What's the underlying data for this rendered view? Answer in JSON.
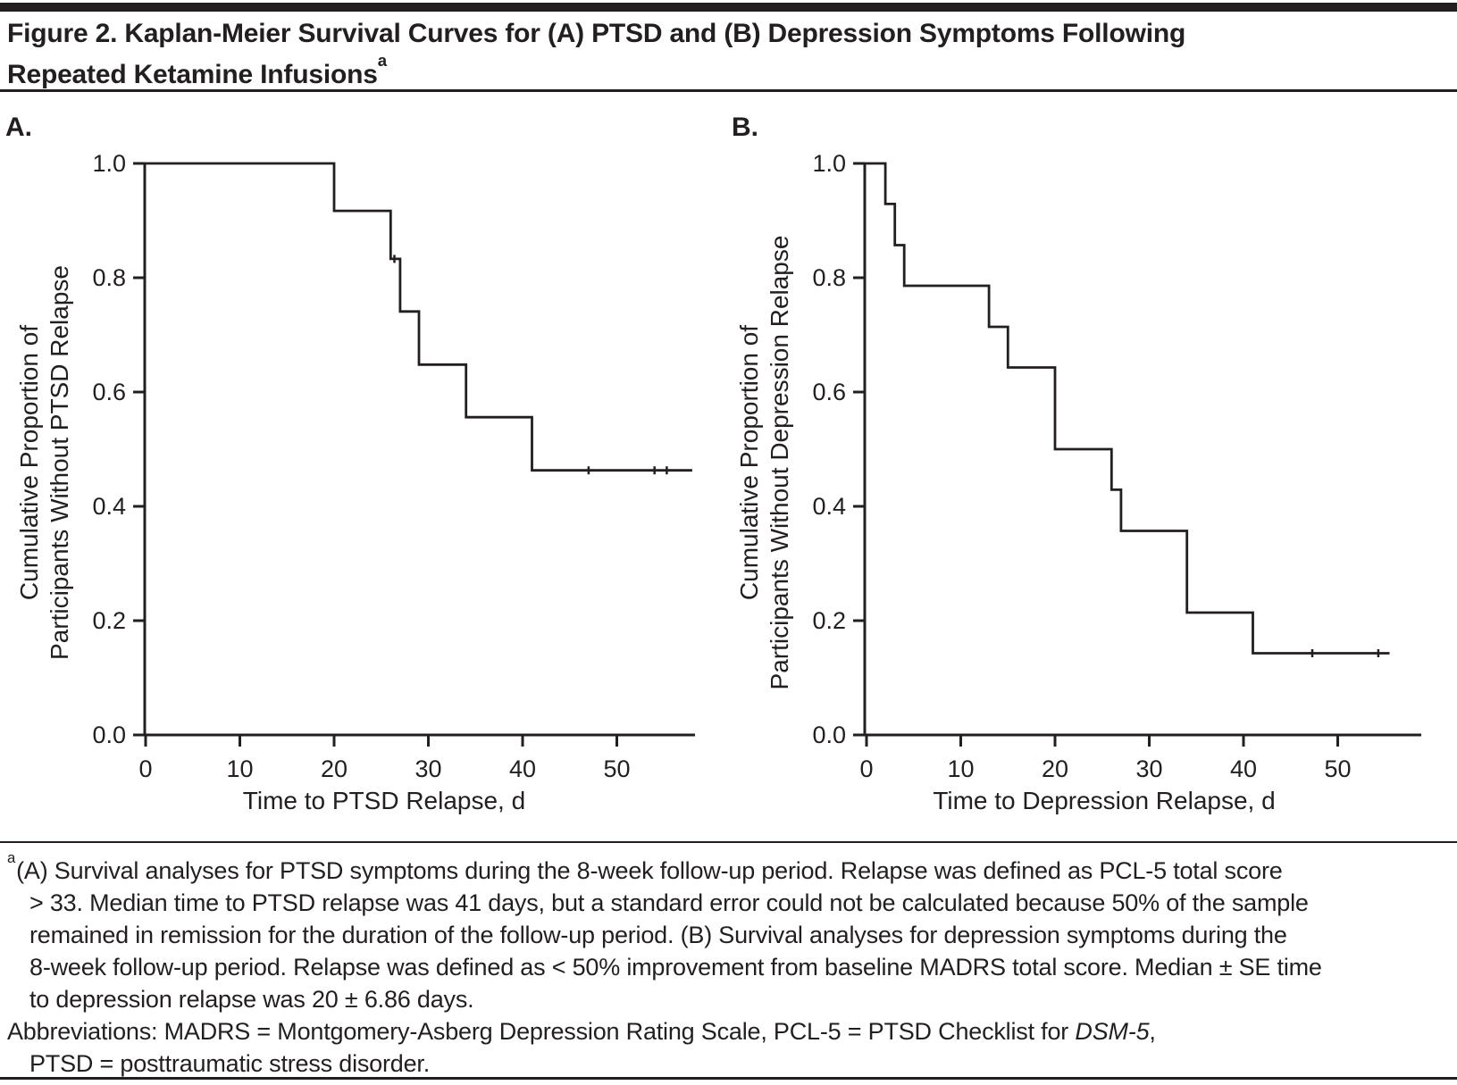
{
  "title": {
    "line1": "Figure 2. Kaplan-Meier Survival Curves for (A) PTSD and (B) Depression Symptoms Following",
    "line2": "Repeated Ketamine Infusions",
    "line2_superscript": "a"
  },
  "colors": {
    "ink": "#231f20",
    "background": "#ffffff"
  },
  "chart_data": [
    {
      "type": "line",
      "subtype": "kaplan-meier-step",
      "panel_label": "A.",
      "xlabel": "Time to PTSD Relapse, d",
      "ylabel_lines": [
        "Cumulative Proportion of",
        "Participants Without PTSD Relapse"
      ],
      "xlim": [
        0,
        58
      ],
      "ylim": [
        0.0,
        1.0
      ],
      "xticks": [
        "0",
        "10",
        "20",
        "30",
        "40",
        "50"
      ],
      "yticks": [
        "0.0",
        "0.2",
        "0.4",
        "0.6",
        "0.8",
        "1.0"
      ],
      "grid": "off",
      "legend": "none",
      "steps": [
        {
          "t": 0,
          "s": 1.0
        },
        {
          "t": 20,
          "s": 0.917
        },
        {
          "t": 26,
          "s": 0.833
        },
        {
          "t": 27,
          "s": 0.741
        },
        {
          "t": 29,
          "s": 0.648
        },
        {
          "t": 34,
          "s": 0.556
        },
        {
          "t": 41,
          "s": 0.463
        }
      ],
      "end_t": 58,
      "censor_marks": [
        {
          "t": 26.4,
          "s": 0.833
        },
        {
          "t": 47,
          "s": 0.463
        },
        {
          "t": 54,
          "s": 0.463
        },
        {
          "t": 55.3,
          "s": 0.463
        }
      ]
    },
    {
      "type": "line",
      "subtype": "kaplan-meier-step",
      "panel_label": "B.",
      "xlabel": "Time to Depression Relapse, d",
      "ylabel_lines": [
        "Cumulative Proportion of",
        "Participants Without Depression Relapse"
      ],
      "xlim": [
        0,
        57
      ],
      "ylim": [
        0.0,
        1.0
      ],
      "xticks": [
        "0",
        "10",
        "20",
        "30",
        "40",
        "50"
      ],
      "yticks": [
        "0.0",
        "0.2",
        "0.4",
        "0.6",
        "0.8",
        "1.0"
      ],
      "grid": "off",
      "legend": "none",
      "steps": [
        {
          "t": 0,
          "s": 1.0
        },
        {
          "t": 2,
          "s": 0.929
        },
        {
          "t": 3,
          "s": 0.857
        },
        {
          "t": 4,
          "s": 0.786
        },
        {
          "t": 13,
          "s": 0.714
        },
        {
          "t": 15,
          "s": 0.643
        },
        {
          "t": 20,
          "s": 0.5
        },
        {
          "t": 26,
          "s": 0.429
        },
        {
          "t": 27,
          "s": 0.357
        },
        {
          "t": 34,
          "s": 0.214
        },
        {
          "t": 41,
          "s": 0.143
        }
      ],
      "end_t": 55.5,
      "censor_marks": [
        {
          "t": 47.3,
          "s": 0.143
        },
        {
          "t": 54.3,
          "s": 0.143
        }
      ]
    }
  ],
  "footnote": {
    "marker": "a",
    "lines": [
      "(A) Survival analyses for PTSD symptoms during the 8-week follow-up period. Relapse was defined as PCL-5 total score",
      "> 33. Median time to PTSD relapse was 41 days, but a standard error could not be calculated because 50% of the sample",
      "remained in remission for the duration of the follow-up period. (B) Survival analyses for depression symptoms during the",
      "8-week follow-up period. Relapse was defined as < 50% improvement from baseline MADRS total score. Median ± SE time",
      "to depression relapse was 20 ± 6.86 days."
    ],
    "abbreviations": {
      "pre": "Abbreviations: MADRS = Montgomery-Asberg Depression Rating Scale, PCL-5 = PTSD Checklist for ",
      "italic": "DSM-5",
      "post": ",",
      "line2": "PTSD = posttraumatic stress disorder."
    }
  }
}
